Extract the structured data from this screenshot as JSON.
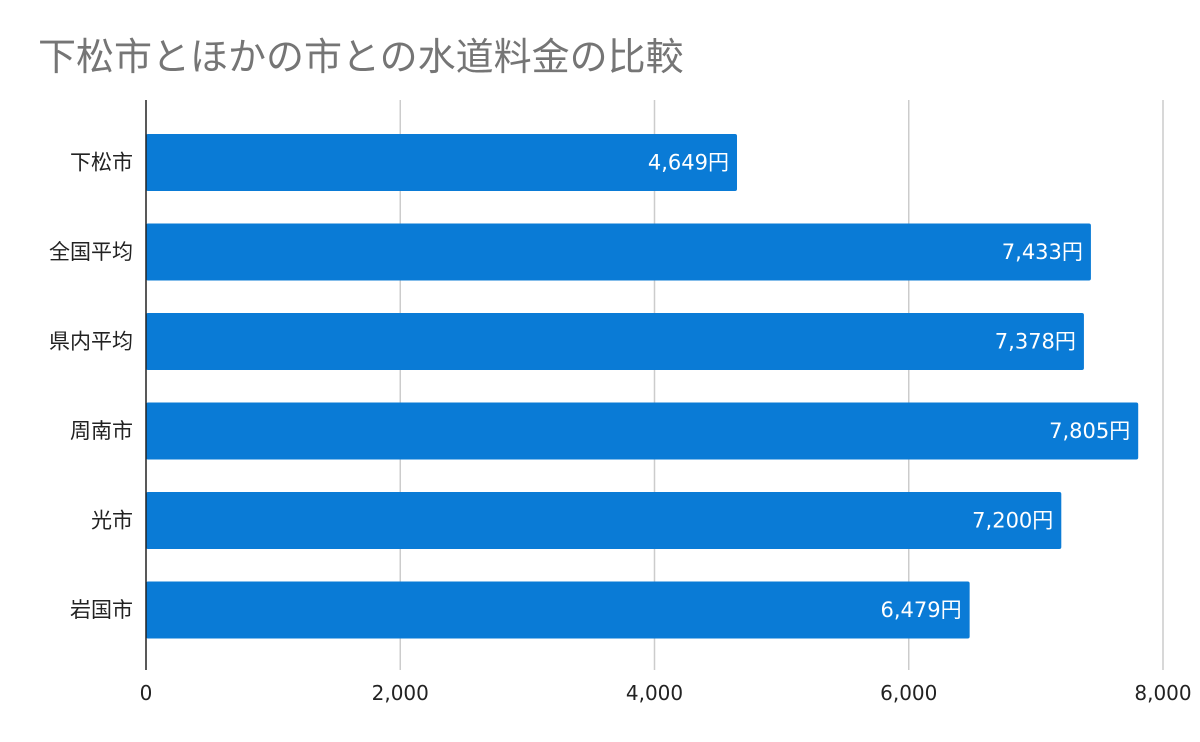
{
  "chart_data": {
    "type": "bar",
    "orientation": "horizontal",
    "title": "下松市とほかの市との水道料金の比較",
    "categories": [
      "下松市",
      "全国平均",
      "県内平均",
      "周南市",
      "光市",
      "岩国市"
    ],
    "values": [
      4649,
      7433,
      7378,
      7805,
      7200,
      6479
    ],
    "data_labels": [
      "4,649円",
      "7,433円",
      "7,378円",
      "7,805円",
      "7,200円",
      "6,479円"
    ],
    "xlim": [
      0,
      8000
    ],
    "x_ticks": [
      0,
      2000,
      4000,
      6000,
      8000
    ],
    "x_tick_labels": [
      "0",
      "2,000",
      "4,000",
      "6,000",
      "8,000"
    ],
    "xlabel": "",
    "ylabel": "",
    "grid": "vertical",
    "legend": "none",
    "colors": {
      "bar": "#0a7bd6",
      "grid": "#cccccc",
      "axis": "#222222",
      "title": "#757575"
    }
  }
}
